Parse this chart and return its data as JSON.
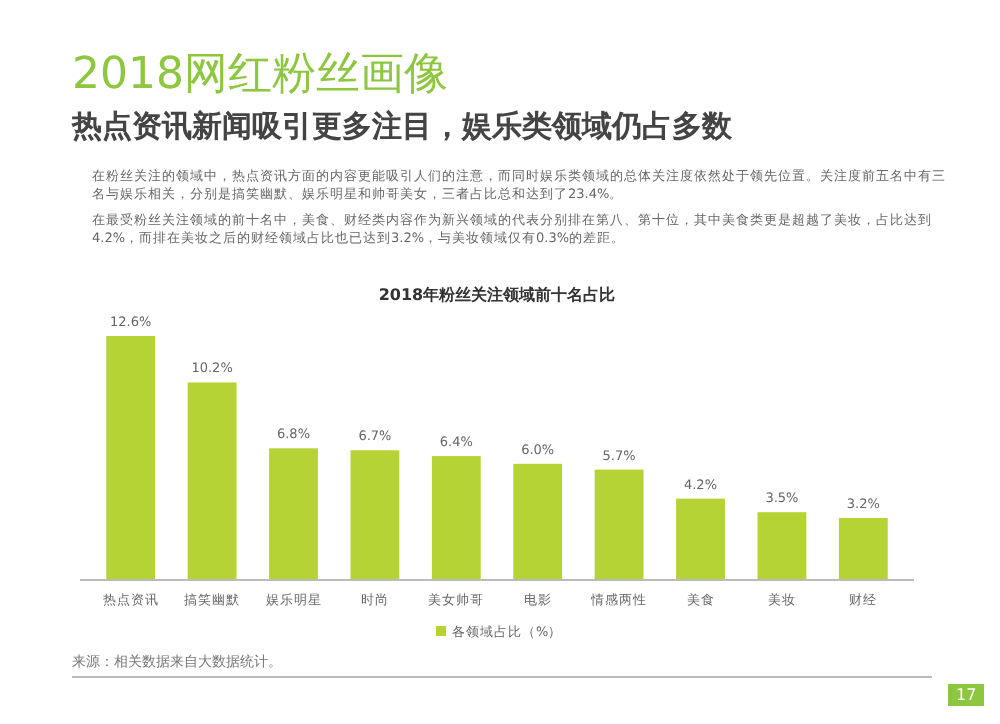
{
  "chart_data": {
    "type": "bar",
    "title": "2018网红粉丝画像",
    "subtitle": "热点资讯新闻吸引更多注目，娱乐类领域仍占多数",
    "xlabel": "2018年粉丝关注领域前十名占比",
    "categories": [
      "热点资讯",
      "搞笑幽默",
      "娱乐明星",
      "时尚",
      "美女帅哥",
      "电影",
      "情感两性",
      "美食",
      "美妆",
      "财经"
    ],
    "series": [
      {
        "name": "各领域占比（%）",
        "color": "#b5d334",
        "values": [
          12.6,
          10.2,
          6.8,
          6.7,
          6.4,
          6.0,
          5.7,
          4.2,
          3.5,
          3.2
        ],
        "value_labels": [
          "12.6%",
          "10.2%",
          "6.8%",
          "6.7%",
          "6.4%",
          "6.0%",
          "5.7%",
          "4.2%",
          "3.5%",
          "3.2%"
        ]
      }
    ],
    "legend": "bottom",
    "annotations": [
      "在粉丝关注的领域中，热点资讯方面的内容更能吸引人们的注意，而同时娱乐类领域的总体关注度依然处于领先位置。关注度前五名中有三名与娱乐相关，分别是搞笑幽默、娱乐明星和帅哥美女，三者占比总和达到了23.4%。",
      "在最受粉丝关注领域的前十名中，美食、财经类内容作为新兴领域的代表分别排在第八、第十位，其中美食类更是超越了美妆，占比达到4.2%，而排在美妆之后的财经领域占比也已达到3.2%，与美妆领域仅有0.3%的差距。",
      "来源：相关数据来自大数据统计。",
      "17"
    ]
  }
}
